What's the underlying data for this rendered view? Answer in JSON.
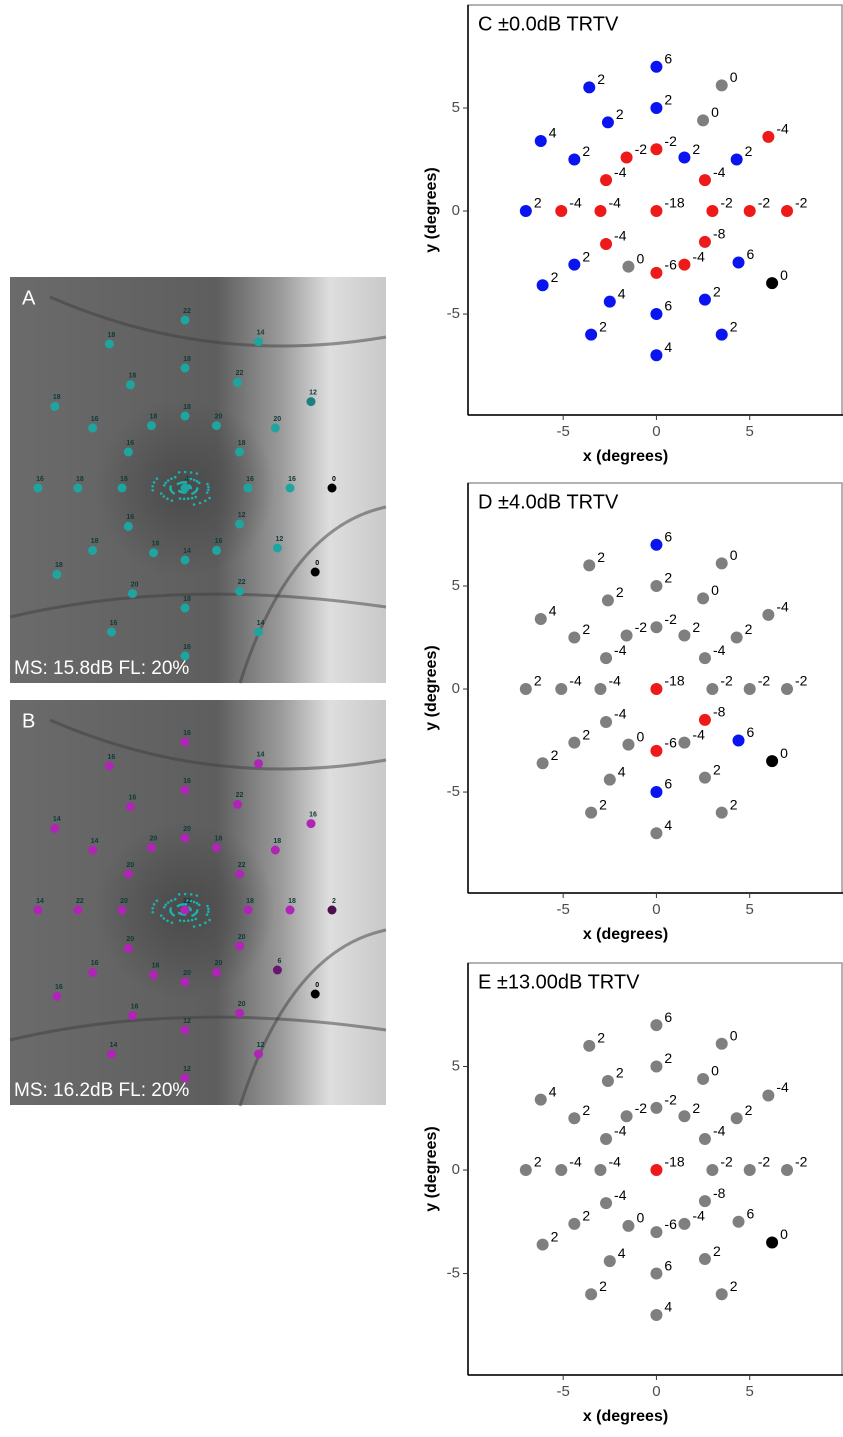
{
  "chart_data": [
    {
      "type": "scatter",
      "title": "A",
      "caption": "MS: 15.8dB FL: 20%",
      "x": [
        0,
        -3.6,
        3.5,
        0,
        -2.6,
        2.5,
        -6.2,
        6,
        -4.4,
        -1.6,
        0,
        1.5,
        4.3,
        -2.7,
        2.6,
        -7,
        -5.1,
        -3,
        0,
        3,
        5,
        7,
        -2.7,
        2.6,
        -4.4,
        -1.5,
        0,
        1.5,
        4.4,
        -6.1,
        6.2,
        -2.5,
        2.6,
        0,
        -3.5,
        3.5,
        0
      ],
      "y": [
        7,
        6,
        6.1,
        5,
        4.3,
        4.4,
        3.4,
        3.6,
        2.5,
        2.6,
        3,
        2.6,
        2.5,
        1.5,
        1.5,
        0,
        0,
        0,
        0,
        0,
        0,
        0,
        -1.6,
        -1.5,
        -2.6,
        -2.7,
        -3,
        -2.6,
        -2.5,
        -3.6,
        -3.5,
        -4.4,
        -4.3,
        -5,
        -6,
        -6,
        -7
      ],
      "labels": [
        "22",
        "18",
        "14",
        "18",
        "18",
        "22",
        "18",
        "12",
        "16",
        "18",
        "18",
        "20",
        "20",
        "16",
        "18",
        "16",
        "18",
        "16",
        "4",
        "16",
        "16",
        "0",
        "16",
        "12",
        "18",
        "18",
        "14",
        "16",
        "12",
        "18",
        "0",
        "20",
        "22",
        "18",
        "16",
        "14",
        "16"
      ],
      "colors": [
        "#1fa5a0",
        "#1fa5a0",
        "#1fa5a0",
        "#1fa5a0",
        "#1fa5a0",
        "#1fa5a0",
        "#1fa5a0",
        "#1a8080",
        "#1fa5a0",
        "#1fa5a0",
        "#1fa5a0",
        "#1fa5a0",
        "#1fa5a0",
        "#1fa5a0",
        "#1fa5a0",
        "#1fa5a0",
        "#1fa5a0",
        "#1fa5a0",
        "#1fa5a0",
        "#1fa5a0",
        "#1fa5a0",
        "#000000",
        "#1fa5a0",
        "#1fa5a0",
        "#1fa5a0",
        "#1fa5a0",
        "#1fa5a0",
        "#1fa5a0",
        "#1fa5a0",
        "#1fa5a0",
        "#000000",
        "#1fa5a0",
        "#1fa5a0",
        "#1fa5a0",
        "#1fa5a0",
        "#1fa5a0",
        "#1fa5a0"
      ]
    },
    {
      "type": "scatter",
      "title": "B",
      "caption": "MS: 16.2dB FL: 20%",
      "x": [
        0,
        -3.6,
        3.5,
        0,
        -2.6,
        2.5,
        -6.2,
        6,
        -4.4,
        -1.6,
        0,
        1.5,
        4.3,
        -2.7,
        2.6,
        -7,
        -5.1,
        -3,
        0,
        3,
        5,
        7,
        -2.7,
        2.6,
        -4.4,
        -1.5,
        0,
        1.5,
        4.4,
        -6.1,
        6.2,
        -2.5,
        2.6,
        0,
        -3.5,
        3.5,
        0
      ],
      "y": [
        7,
        6,
        6.1,
        5,
        4.3,
        4.4,
        3.4,
        3.6,
        2.5,
        2.6,
        3,
        2.6,
        2.5,
        1.5,
        1.5,
        0,
        0,
        0,
        0,
        0,
        0,
        0,
        -1.6,
        -1.5,
        -2.6,
        -2.7,
        -3,
        -2.6,
        -2.5,
        -3.6,
        -3.5,
        -4.4,
        -4.3,
        -5,
        -6,
        -6,
        -7
      ],
      "labels": [
        "16",
        "16",
        "14",
        "16",
        "16",
        "22",
        "14",
        "16",
        "14",
        "20",
        "20",
        "18",
        "18",
        "20",
        "22",
        "14",
        "22",
        "20",
        "22",
        "18",
        "18",
        "2",
        "20",
        "20",
        "16",
        "18",
        "20",
        "20",
        "6",
        "16",
        "0",
        "16",
        "20",
        "12",
        "14",
        "12",
        "12"
      ],
      "colors": [
        "#b025b5",
        "#b025b5",
        "#b025b5",
        "#b025b5",
        "#b025b5",
        "#b025b5",
        "#b025b5",
        "#b025b5",
        "#b025b5",
        "#b025b5",
        "#b025b5",
        "#b025b5",
        "#b025b5",
        "#b025b5",
        "#b025b5",
        "#b025b5",
        "#b025b5",
        "#b025b5",
        "#b025b5",
        "#b025b5",
        "#b025b5",
        "#4a1050",
        "#b025b5",
        "#b025b5",
        "#b025b5",
        "#b025b5",
        "#b025b5",
        "#b025b5",
        "#6a1570",
        "#b025b5",
        "#000000",
        "#b025b5",
        "#b025b5",
        "#b025b5",
        "#b025b5",
        "#b025b5",
        "#b025b5"
      ]
    },
    {
      "type": "scatter",
      "title": "C ±0.0dB TRTV",
      "x_label": "x (degrees)",
      "y_label": "y (degrees)",
      "xlim": [
        -10.1,
        10
      ],
      "ylim": [
        -9.9,
        10
      ],
      "xticks": [
        -5,
        0,
        5
      ],
      "yticks": [
        -5,
        0,
        5
      ],
      "x": [
        0,
        -3.6,
        3.5,
        0,
        -2.6,
        2.5,
        -6.2,
        6,
        -4.4,
        -1.6,
        0,
        1.5,
        4.3,
        -2.7,
        2.6,
        -7,
        -5.1,
        -3,
        0,
        3,
        5,
        7,
        -2.7,
        2.6,
        -4.4,
        -1.5,
        0,
        1.5,
        4.4,
        -6.1,
        6.2,
        -2.5,
        2.6,
        0,
        -3.5,
        3.5,
        0
      ],
      "y": [
        7,
        6,
        6.1,
        5,
        4.3,
        4.4,
        3.4,
        3.6,
        2.5,
        2.6,
        3,
        2.6,
        2.5,
        1.5,
        1.5,
        0,
        0,
        0,
        0,
        0,
        0,
        0,
        -1.6,
        -1.5,
        -2.6,
        -2.7,
        -3,
        -2.6,
        -2.5,
        -3.6,
        -3.5,
        -4.4,
        -4.3,
        -5,
        -6,
        -6,
        -7
      ],
      "labels": [
        "6",
        "2",
        "0",
        "2",
        "2",
        "0",
        "4",
        "-4",
        "2",
        "-2",
        "-2",
        "2",
        "2",
        "-4",
        "-4",
        "2",
        "-4",
        "-4",
        "-18",
        "-2",
        "-2",
        "-2",
        "-4",
        "-8",
        "2",
        "0",
        "-6",
        "-4",
        "6",
        "2",
        "0",
        "4",
        "2",
        "6",
        "2",
        "2",
        "4"
      ],
      "colors": [
        "#0a14f0",
        "#0a14f0",
        "#7f7f7f",
        "#0a14f0",
        "#0a14f0",
        "#7f7f7f",
        "#0a14f0",
        "#ee1a1a",
        "#0a14f0",
        "#ee1a1a",
        "#ee1a1a",
        "#0a14f0",
        "#0a14f0",
        "#ee1a1a",
        "#ee1a1a",
        "#0a14f0",
        "#ee1a1a",
        "#ee1a1a",
        "#ee1a1a",
        "#ee1a1a",
        "#ee1a1a",
        "#ee1a1a",
        "#ee1a1a",
        "#ee1a1a",
        "#0a14f0",
        "#7f7f7f",
        "#ee1a1a",
        "#ee1a1a",
        "#0a14f0",
        "#0a14f0",
        "#000000",
        "#0a14f0",
        "#0a14f0",
        "#0a14f0",
        "#0a14f0",
        "#0a14f0",
        "#0a14f0"
      ]
    },
    {
      "type": "scatter",
      "title": "D ±4.0dB TRTV",
      "x_label": "x (degrees)",
      "y_label": "y (degrees)",
      "xlim": [
        -10.1,
        10
      ],
      "ylim": [
        -9.9,
        10
      ],
      "xticks": [
        -5,
        0,
        5
      ],
      "yticks": [
        -5,
        0,
        5
      ],
      "x": [
        0,
        -3.6,
        3.5,
        0,
        -2.6,
        2.5,
        -6.2,
        6,
        -4.4,
        -1.6,
        0,
        1.5,
        4.3,
        -2.7,
        2.6,
        -7,
        -5.1,
        -3,
        0,
        3,
        5,
        7,
        -2.7,
        2.6,
        -4.4,
        -1.5,
        0,
        1.5,
        4.4,
        -6.1,
        6.2,
        -2.5,
        2.6,
        0,
        -3.5,
        3.5,
        0
      ],
      "y": [
        7,
        6,
        6.1,
        5,
        4.3,
        4.4,
        3.4,
        3.6,
        2.5,
        2.6,
        3,
        2.6,
        2.5,
        1.5,
        1.5,
        0,
        0,
        0,
        0,
        0,
        0,
        0,
        -1.6,
        -1.5,
        -2.6,
        -2.7,
        -3,
        -2.6,
        -2.5,
        -3.6,
        -3.5,
        -4.4,
        -4.3,
        -5,
        -6,
        -6,
        -7
      ],
      "labels": [
        "6",
        "2",
        "0",
        "2",
        "2",
        "0",
        "4",
        "-4",
        "2",
        "-2",
        "-2",
        "2",
        "2",
        "-4",
        "-4",
        "2",
        "-4",
        "-4",
        "-18",
        "-2",
        "-2",
        "-2",
        "-4",
        "-8",
        "2",
        "0",
        "-6",
        "-4",
        "6",
        "2",
        "0",
        "4",
        "2",
        "6",
        "2",
        "2",
        "4"
      ],
      "colors": [
        "#0a14f0",
        "#7f7f7f",
        "#7f7f7f",
        "#7f7f7f",
        "#7f7f7f",
        "#7f7f7f",
        "#7f7f7f",
        "#7f7f7f",
        "#7f7f7f",
        "#7f7f7f",
        "#7f7f7f",
        "#7f7f7f",
        "#7f7f7f",
        "#7f7f7f",
        "#7f7f7f",
        "#7f7f7f",
        "#7f7f7f",
        "#7f7f7f",
        "#ee1a1a",
        "#7f7f7f",
        "#7f7f7f",
        "#7f7f7f",
        "#7f7f7f",
        "#ee1a1a",
        "#7f7f7f",
        "#7f7f7f",
        "#ee1a1a",
        "#7f7f7f",
        "#0a14f0",
        "#7f7f7f",
        "#000000",
        "#7f7f7f",
        "#7f7f7f",
        "#0a14f0",
        "#7f7f7f",
        "#7f7f7f",
        "#7f7f7f"
      ]
    },
    {
      "type": "scatter",
      "title": "E ±13.00dB TRTV",
      "x_label": "x (degrees)",
      "y_label": "y (degrees)",
      "xlim": [
        -10.1,
        10
      ],
      "ylim": [
        -9.9,
        10
      ],
      "xticks": [
        -5,
        0,
        5
      ],
      "yticks": [
        -5,
        0,
        5
      ],
      "x": [
        0,
        -3.6,
        3.5,
        0,
        -2.6,
        2.5,
        -6.2,
        6,
        -4.4,
        -1.6,
        0,
        1.5,
        4.3,
        -2.7,
        2.6,
        -7,
        -5.1,
        -3,
        0,
        3,
        5,
        7,
        -2.7,
        2.6,
        -4.4,
        -1.5,
        0,
        1.5,
        4.4,
        -6.1,
        6.2,
        -2.5,
        2.6,
        0,
        -3.5,
        3.5,
        0
      ],
      "y": [
        7,
        6,
        6.1,
        5,
        4.3,
        4.4,
        3.4,
        3.6,
        2.5,
        2.6,
        3,
        2.6,
        2.5,
        1.5,
        1.5,
        0,
        0,
        0,
        0,
        0,
        0,
        0,
        -1.6,
        -1.5,
        -2.6,
        -2.7,
        -3,
        -2.6,
        -2.5,
        -3.6,
        -3.5,
        -4.4,
        -4.3,
        -5,
        -6,
        -6,
        -7
      ],
      "labels": [
        "6",
        "2",
        "0",
        "2",
        "2",
        "0",
        "4",
        "-4",
        "2",
        "-2",
        "-2",
        "2",
        "2",
        "-4",
        "-4",
        "2",
        "-4",
        "-4",
        "-18",
        "-2",
        "-2",
        "-2",
        "-4",
        "-8",
        "2",
        "0",
        "-6",
        "-4",
        "6",
        "2",
        "0",
        "4",
        "2",
        "6",
        "2",
        "2",
        "4"
      ],
      "colors": [
        "#7f7f7f",
        "#7f7f7f",
        "#7f7f7f",
        "#7f7f7f",
        "#7f7f7f",
        "#7f7f7f",
        "#7f7f7f",
        "#7f7f7f",
        "#7f7f7f",
        "#7f7f7f",
        "#7f7f7f",
        "#7f7f7f",
        "#7f7f7f",
        "#7f7f7f",
        "#7f7f7f",
        "#7f7f7f",
        "#7f7f7f",
        "#7f7f7f",
        "#ee1a1a",
        "#7f7f7f",
        "#7f7f7f",
        "#7f7f7f",
        "#7f7f7f",
        "#7f7f7f",
        "#7f7f7f",
        "#7f7f7f",
        "#7f7f7f",
        "#7f7f7f",
        "#7f7f7f",
        "#7f7f7f",
        "#000000",
        "#7f7f7f",
        "#7f7f7f",
        "#7f7f7f",
        "#7f7f7f",
        "#7f7f7f",
        "#7f7f7f"
      ]
    }
  ]
}
